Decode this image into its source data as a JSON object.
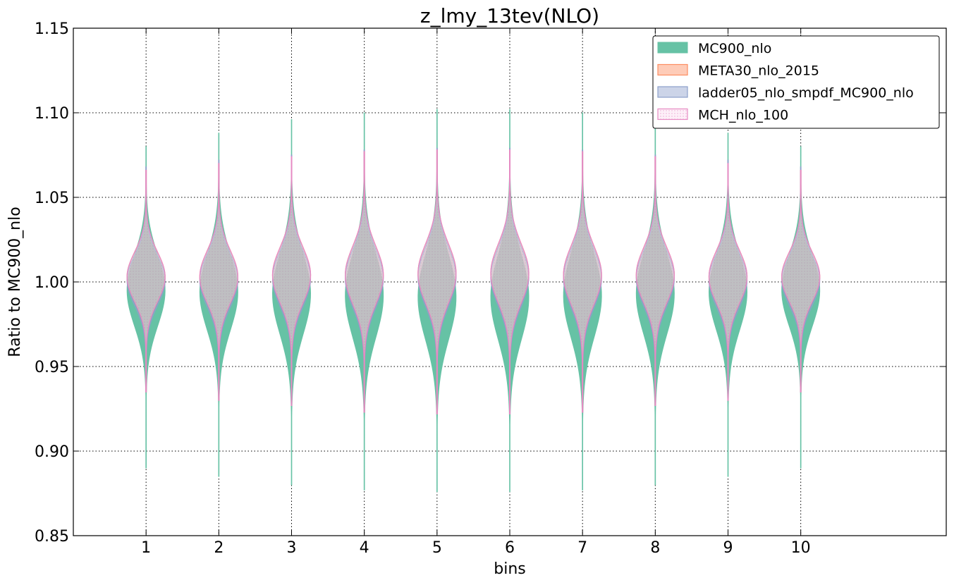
{
  "chart_data": {
    "type": "violin",
    "title": "z_lmy_13tev(NLO)",
    "xlabel": "bins",
    "ylabel": "Ratio to MC900_nlo",
    "categories": [
      "1",
      "2",
      "3",
      "4",
      "5",
      "6",
      "7",
      "8",
      "9",
      "10"
    ],
    "xlim": [
      0,
      12
    ],
    "ylim": [
      0.85,
      1.15
    ],
    "yticks": [
      "0.85",
      "0.90",
      "0.95",
      "1.00",
      "1.05",
      "1.10",
      "1.15"
    ],
    "grid": true,
    "legend": "top-right",
    "series": [
      {
        "name": "MC900_nlo",
        "color": "#66c2a5",
        "style": "solid",
        "min": [
          0.89,
          0.885,
          0.88,
          0.877,
          0.876,
          0.876,
          0.877,
          0.88,
          0.885,
          0.89
        ],
        "max": [
          1.08,
          1.088,
          1.096,
          1.1,
          1.102,
          1.102,
          1.1,
          1.096,
          1.088,
          1.08
        ],
        "center": [
          0.995,
          0.994,
          0.993,
          0.992,
          0.991,
          0.991,
          0.992,
          0.993,
          0.994,
          0.995
        ]
      },
      {
        "name": "META30_nlo_2015",
        "color": "#fc8d62",
        "style": "light",
        "min": [
          0.935,
          0.93,
          0.927,
          0.923,
          0.922,
          0.922,
          0.923,
          0.927,
          0.93,
          0.935
        ],
        "max": [
          1.066,
          1.07,
          1.074,
          1.077,
          1.078,
          1.078,
          1.077,
          1.074,
          1.07,
          1.066
        ],
        "center": [
          1.003,
          1.003,
          1.004,
          1.004,
          1.005,
          1.005,
          1.004,
          1.004,
          1.003,
          1.003
        ]
      },
      {
        "name": "ladder05_nlo_smpdf_MC900_nlo",
        "color": "#8da0cb",
        "style": "light",
        "min": [
          0.935,
          0.93,
          0.927,
          0.923,
          0.922,
          0.922,
          0.923,
          0.927,
          0.93,
          0.935
        ],
        "max": [
          1.068,
          1.072,
          1.075,
          1.078,
          1.079,
          1.079,
          1.078,
          1.075,
          1.072,
          1.068
        ],
        "center": [
          1.001,
          1.001,
          1.002,
          1.002,
          1.003,
          1.003,
          1.002,
          1.002,
          1.001,
          1.001
        ]
      },
      {
        "name": "MCH_nlo_100",
        "color": "#e78ac3",
        "style": "hatch",
        "min": [
          0.935,
          0.93,
          0.927,
          0.923,
          0.922,
          0.922,
          0.923,
          0.927,
          0.93,
          0.935
        ],
        "max": [
          1.066,
          1.07,
          1.074,
          1.077,
          1.078,
          1.078,
          1.077,
          1.074,
          1.07,
          1.066
        ],
        "center": [
          1.003,
          1.003,
          1.004,
          1.004,
          1.005,
          1.005,
          1.004,
          1.004,
          1.003,
          1.003
        ]
      }
    ]
  }
}
